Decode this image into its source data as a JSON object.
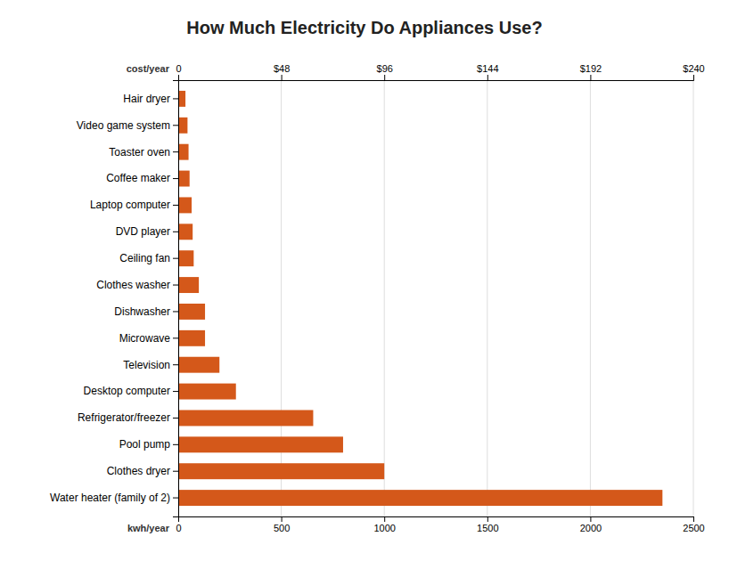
{
  "chart_data": {
    "type": "bar",
    "orientation": "horizontal",
    "title": "How Much Electricity Do Appliances Use?",
    "categories": [
      "Water heater (family of 2)",
      "Clothes dryer",
      "Pool pump",
      "Refrigerator/freezer",
      "Desktop computer",
      "Television",
      "Microwave",
      "Dishwasher",
      "Clothes washer",
      "Ceiling fan",
      "DVD player",
      "Laptop computer",
      "Coffee maker",
      "Toaster oven",
      "Video game system",
      "Hair dryer"
    ],
    "values": [
      2350,
      1000,
      800,
      655,
      280,
      200,
      130,
      130,
      100,
      75,
      70,
      65,
      55,
      50,
      45,
      35
    ],
    "color": "#d4581a",
    "xlabel": "kwh/year",
    "x2label": "cost/year",
    "xlim": [
      0,
      2500
    ],
    "xticks": [
      0,
      500,
      1000,
      1500,
      2000,
      2500
    ],
    "x2lim": [
      0,
      240
    ],
    "x2ticks": [
      0,
      {
        "value": 48,
        "label": "$48"
      },
      {
        "value": 96,
        "label": "$96"
      },
      {
        "value": 144,
        "label": "$144"
      },
      {
        "value": 192,
        "label": "$192"
      },
      {
        "value": 240,
        "label": "$240"
      }
    ],
    "grid": true
  }
}
